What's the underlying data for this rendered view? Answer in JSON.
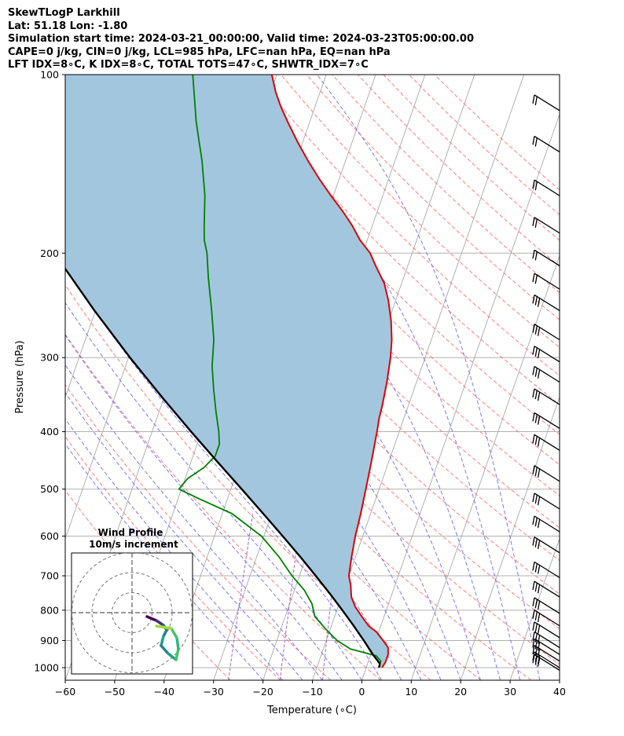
{
  "header": {
    "line1": "SkewTLogP Larkhill",
    "line2": "Lat: 51.18   Lon: -1.80",
    "line3": "Simulation start time: 2024-03-21_00:00:00, Valid time: 2024-03-23T05:00:00.00",
    "line4": "CAPE=0 j/kg, CIN=0 j/kg, LCL=985 hPa, LFC=nan hPa, EQ=nan hPa",
    "line5": "LFT IDX=8∘C, K IDX=8∘C, TOTAL TOTS=47∘C, SHWTR_IDX=7∘C"
  },
  "chart_data": {
    "type": "line",
    "subtype": "skew-t log-p",
    "xlabel": "Temperature (∘C)",
    "ylabel": "Pressure (hPa)",
    "xlim": [
      -60,
      40
    ],
    "ylim": [
      1050,
      100
    ],
    "y_scale": "log",
    "x_ticks": [
      "−60",
      "−50",
      "−40",
      "−30",
      "−20",
      "−10",
      "0",
      "10",
      "20",
      "30",
      "40"
    ],
    "x_tick_values": [
      -60,
      -50,
      -40,
      -30,
      -20,
      -10,
      0,
      10,
      20,
      30,
      40
    ],
    "y_ticks": [
      1000,
      900,
      800,
      700,
      600,
      500,
      400,
      300,
      200,
      100
    ],
    "grid": true,
    "colors": {
      "temperature": "#e00000",
      "dewpoint": "#008000",
      "parcel": "#000000",
      "shading": "#a3c6df",
      "dry_adiabats": "#ff6666",
      "moist_adiabats": "#6a6aff",
      "mixing_ratio": "#9955cc",
      "isotherms": "#a8a8a8"
    },
    "series": [
      {
        "key": "temperature",
        "points": [
          [
            3.2,
            1000
          ],
          [
            3.5,
            980
          ],
          [
            3.5,
            950
          ],
          [
            3.0,
            925
          ],
          [
            1.5,
            900
          ],
          [
            -0.5,
            870
          ],
          [
            -2.5,
            850
          ],
          [
            -4.5,
            820
          ],
          [
            -6.5,
            790
          ],
          [
            -8.0,
            760
          ],
          [
            -9.0,
            725
          ],
          [
            -10.0,
            700
          ],
          [
            -10.8,
            650
          ],
          [
            -11.5,
            600
          ],
          [
            -12.0,
            550
          ],
          [
            -12.7,
            500
          ],
          [
            -13.5,
            450
          ],
          [
            -14.5,
            400
          ],
          [
            -15.0,
            380
          ],
          [
            -15.3,
            360
          ],
          [
            -16.0,
            330
          ],
          [
            -17.0,
            300
          ],
          [
            -18.0,
            280
          ],
          [
            -19.5,
            260
          ],
          [
            -21.5,
            240
          ],
          [
            -23.5,
            225
          ],
          [
            -26.5,
            210
          ],
          [
            -28.5,
            200
          ],
          [
            -31.5,
            190
          ],
          [
            -34.0,
            180
          ],
          [
            -37.0,
            170
          ],
          [
            -40.5,
            160
          ],
          [
            -44.0,
            150
          ],
          [
            -47.5,
            140
          ],
          [
            -51.0,
            130
          ],
          [
            -54.5,
            120
          ],
          [
            -57.0,
            113
          ],
          [
            -59.0,
            107
          ],
          [
            -61.0,
            100
          ]
        ]
      },
      {
        "key": "dewpoint",
        "points": [
          [
            2.5,
            1000
          ],
          [
            2.5,
            975
          ],
          [
            1.2,
            955
          ],
          [
            -4.5,
            930
          ],
          [
            -7.8,
            900
          ],
          [
            -11.0,
            860
          ],
          [
            -14.0,
            820
          ],
          [
            -15.5,
            780
          ],
          [
            -18.0,
            740
          ],
          [
            -21.5,
            700
          ],
          [
            -25.5,
            650
          ],
          [
            -30.5,
            600
          ],
          [
            -38.0,
            550
          ],
          [
            -45.5,
            520
          ],
          [
            -50.5,
            500
          ],
          [
            -49.5,
            480
          ],
          [
            -47.0,
            460
          ],
          [
            -45.5,
            440
          ],
          [
            -45.5,
            420
          ],
          [
            -46.5,
            400
          ],
          [
            -48.5,
            370
          ],
          [
            -50.5,
            340
          ],
          [
            -52.5,
            310
          ],
          [
            -54.0,
            280
          ],
          [
            -56.5,
            250
          ],
          [
            -59.5,
            220
          ],
          [
            -61.5,
            200
          ],
          [
            -63.0,
            190
          ],
          [
            -64.0,
            180
          ],
          [
            -66.0,
            160
          ],
          [
            -69.0,
            140
          ],
          [
            -73.0,
            120
          ],
          [
            -77.0,
            100
          ]
        ]
      },
      {
        "key": "parcel",
        "points": [
          [
            2.6,
            1000
          ],
          [
            2.5,
            985
          ],
          [
            0.4,
            950
          ],
          [
            -2.4,
            900
          ],
          [
            -5.5,
            850
          ],
          [
            -8.9,
            800
          ],
          [
            -12.6,
            750
          ],
          [
            -16.7,
            700
          ],
          [
            -21.2,
            650
          ],
          [
            -26.2,
            600
          ],
          [
            -31.7,
            550
          ],
          [
            -37.8,
            500
          ],
          [
            -44.6,
            450
          ],
          [
            -52.1,
            400
          ],
          [
            -60.4,
            350
          ],
          [
            -69.7,
            300
          ],
          [
            -80.2,
            250
          ],
          [
            -92.4,
            200
          ],
          [
            -99.0,
            180
          ],
          [
            -106.0,
            160
          ],
          [
            -113.5,
            140
          ],
          [
            -122.0,
            120
          ],
          [
            -131.5,
            100
          ]
        ]
      }
    ],
    "wind_barbs_pressures": [
      115,
      135,
      160,
      185,
      210,
      230,
      250,
      280,
      305,
      330,
      360,
      395,
      430,
      485,
      540,
      590,
      640,
      705,
      760,
      810,
      850,
      890,
      925,
      950,
      975,
      1000,
      1010
    ],
    "hodograph": {
      "title": "Wind Profile",
      "subtitle": "10m/s increment",
      "rings": [
        10,
        20,
        30
      ]
    }
  }
}
